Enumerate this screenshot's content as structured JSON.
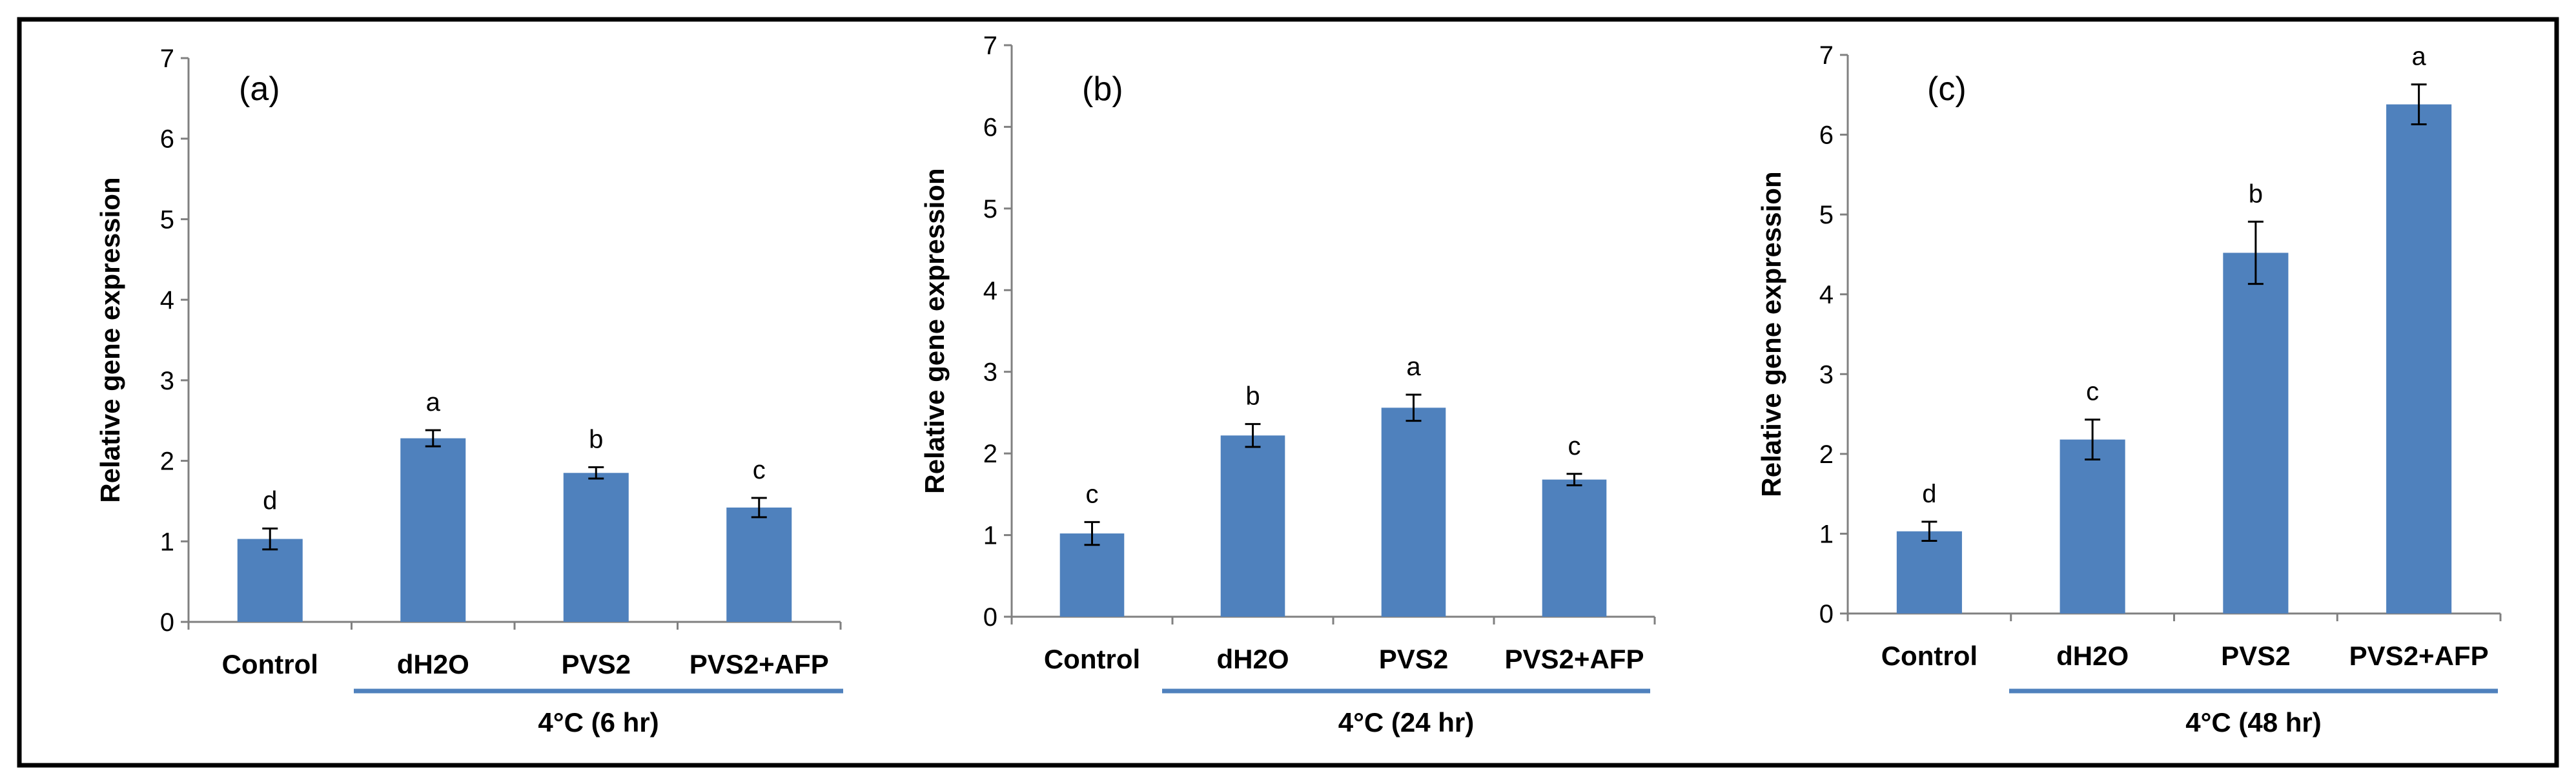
{
  "colors": {
    "bar": "#4F81BD",
    "group_line": "#4F81BD",
    "axis": "#808080",
    "frame": "#000000"
  },
  "chart_data": [
    {
      "type": "bar",
      "panel": "(a)",
      "ylabel": "Relative gene expression",
      "ylim": [
        0,
        7
      ],
      "yticks": [
        "0",
        "1",
        "2",
        "3",
        "4",
        "5",
        "6",
        "7"
      ],
      "categories": [
        "Control",
        "dH2O",
        "PVS2",
        "PVS2+AFP"
      ],
      "values": [
        1.03,
        2.28,
        1.85,
        1.42
      ],
      "errors": [
        0.13,
        0.1,
        0.07,
        0.12
      ],
      "letters": [
        "d",
        "a",
        "b",
        "c"
      ],
      "group_label": "4°C (6 hr)"
    },
    {
      "type": "bar",
      "panel": "(b)",
      "ylabel": "Relative gene expression",
      "ylim": [
        0,
        7
      ],
      "yticks": [
        "0",
        "1",
        "2",
        "3",
        "4",
        "5",
        "6",
        "7"
      ],
      "categories": [
        "Control",
        "dH2O",
        "PVS2",
        "PVS2+AFP"
      ],
      "values": [
        1.02,
        2.22,
        2.56,
        1.68
      ],
      "errors": [
        0.14,
        0.14,
        0.16,
        0.07
      ],
      "letters": [
        "c",
        "b",
        "a",
        "c"
      ],
      "group_label": "4°C (24 hr)"
    },
    {
      "type": "bar",
      "panel": "(c)",
      "ylabel": "Relative gene expression",
      "ylim": [
        0,
        7
      ],
      "yticks": [
        "0",
        "1",
        "2",
        "3",
        "4",
        "5",
        "6",
        "7"
      ],
      "categories": [
        "Control",
        "dH2O",
        "PVS2",
        "PVS2+AFP"
      ],
      "values": [
        1.03,
        2.18,
        4.52,
        6.38
      ],
      "errors": [
        0.12,
        0.25,
        0.39,
        0.25
      ],
      "letters": [
        "d",
        "c",
        "b",
        "a"
      ],
      "group_label": "4°C (48 hr)"
    }
  ]
}
